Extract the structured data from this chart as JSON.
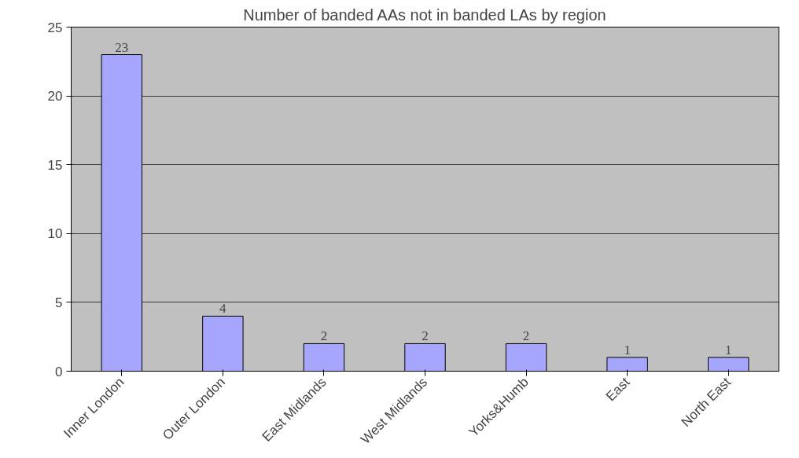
{
  "chart_data": {
    "type": "bar",
    "title": "Number of banded AAs not in banded LAs by region",
    "categories": [
      "Inner London",
      "Outer London",
      "East Midlands",
      "West Midlands",
      "Yorks&Humb",
      "East",
      "North East"
    ],
    "values": [
      23,
      4,
      2,
      2,
      2,
      1,
      1
    ],
    "color": "#a6a6ff",
    "ylim": [
      0,
      25
    ],
    "yticks": [
      0,
      5,
      10,
      15,
      20,
      25
    ],
    "grid": "y",
    "data_labels": true
  }
}
